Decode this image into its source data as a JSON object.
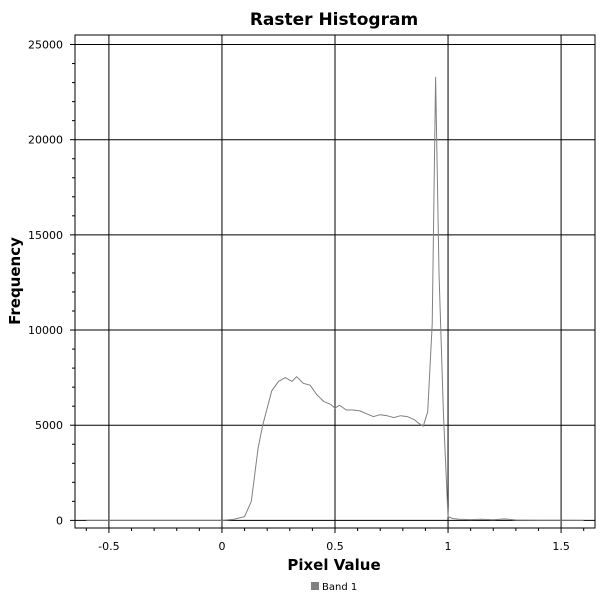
{
  "chart_data": {
    "type": "line",
    "title": "Raster Histogram",
    "xlabel": "Pixel Value",
    "ylabel": "Frequency",
    "xlim": [
      -0.65,
      1.65
    ],
    "ylim": [
      -400,
      25500
    ],
    "x_ticks": [
      -0.5,
      0,
      0.5,
      1,
      1.5
    ],
    "x_tick_labels": [
      "-0.5",
      "0",
      "0.5",
      "1",
      "1.5"
    ],
    "y_ticks": [
      0,
      5000,
      10000,
      15000,
      20000,
      25000
    ],
    "y_tick_labels": [
      "0",
      "5000",
      "10000",
      "15000",
      "20000",
      "25000"
    ],
    "grid": true,
    "legend_position": "bottom-center",
    "series": [
      {
        "name": "Band 1",
        "color": "#808080",
        "x": [
          -0.6,
          0.0,
          0.05,
          0.1,
          0.13,
          0.16,
          0.18,
          0.2,
          0.22,
          0.25,
          0.28,
          0.31,
          0.33,
          0.36,
          0.39,
          0.42,
          0.45,
          0.48,
          0.5,
          0.52,
          0.55,
          0.58,
          0.61,
          0.64,
          0.67,
          0.7,
          0.73,
          0.76,
          0.79,
          0.82,
          0.85,
          0.87,
          0.89,
          0.91,
          0.93,
          0.945,
          0.96,
          0.98,
          1.0,
          1.02,
          1.05,
          1.1,
          1.15,
          1.2,
          1.25,
          1.3,
          1.4,
          1.5,
          1.6
        ],
        "y": [
          0,
          0,
          50,
          200,
          1000,
          3800,
          5000,
          5900,
          6800,
          7300,
          7500,
          7300,
          7550,
          7200,
          7100,
          6600,
          6250,
          6100,
          5900,
          6050,
          5800,
          5800,
          5750,
          5600,
          5450,
          5550,
          5500,
          5400,
          5500,
          5450,
          5300,
          5100,
          4950,
          5700,
          10300,
          23300,
          13000,
          5500,
          200,
          100,
          60,
          40,
          60,
          30,
          80,
          20,
          10,
          5,
          0
        ]
      }
    ]
  }
}
